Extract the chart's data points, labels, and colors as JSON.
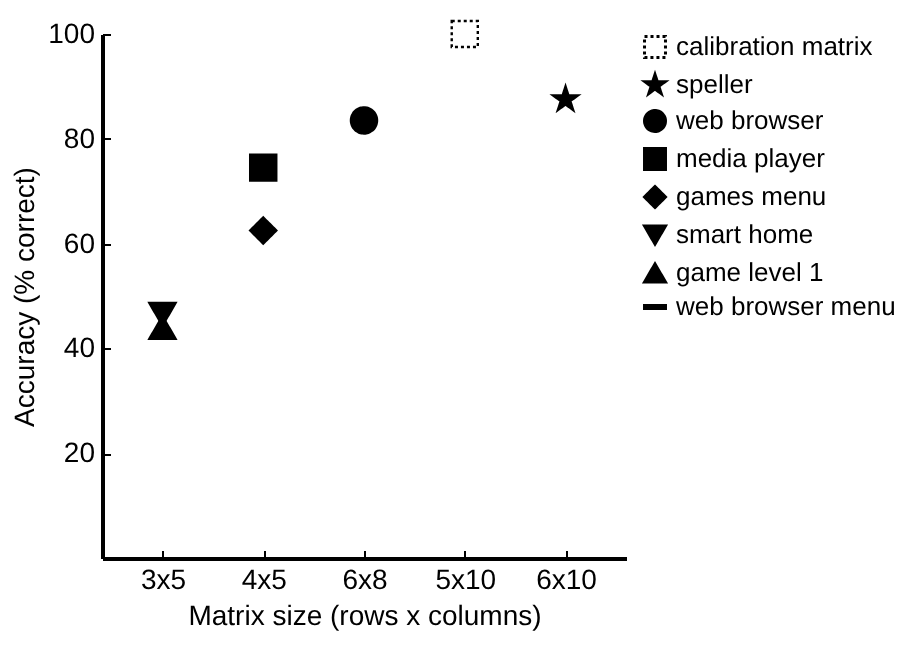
{
  "chart_data": {
    "type": "scatter",
    "xlabel": "Matrix size (rows x columns)",
    "ylabel": "Accuracy (% correct)",
    "categories": [
      "3x5",
      "4x5",
      "6x8",
      "5x10",
      "6x10"
    ],
    "ylim": [
      0,
      100
    ],
    "yticks": [
      20,
      40,
      60,
      80,
      100
    ],
    "grid": false,
    "legend": "right",
    "series": [
      {
        "name": "calibration matrix",
        "color": "#000000",
        "marker": "square",
        "line_style": "dotted",
        "values": [
          null,
          null,
          null,
          100,
          null
        ]
      },
      {
        "name": "speller",
        "color": "#000000",
        "marker": "star",
        "values": [
          null,
          null,
          null,
          null,
          87.5
        ]
      },
      {
        "name": "web browser",
        "color": "#000000",
        "marker": "circle",
        "values": [
          null,
          null,
          83.5,
          null,
          null
        ]
      },
      {
        "name": "media player",
        "color": "#000000",
        "marker": "square",
        "values": [
          null,
          74.5,
          null,
          null,
          null
        ]
      },
      {
        "name": "games menu",
        "color": "#000000",
        "marker": "diamond",
        "values": [
          null,
          62.5,
          null,
          null,
          null
        ]
      },
      {
        "name": "smart home",
        "color": "#000000",
        "marker": "triangle-down",
        "values": [
          46.5,
          null,
          null,
          null,
          null
        ]
      },
      {
        "name": "game level 1",
        "color": "#000000",
        "marker": "triangle-up",
        "values": [
          44,
          null,
          null,
          null,
          null
        ]
      },
      {
        "name": "web browser menu",
        "color": "#000000",
        "marker": "dash",
        "values": [
          null,
          null,
          null,
          null,
          null
        ]
      }
    ]
  }
}
